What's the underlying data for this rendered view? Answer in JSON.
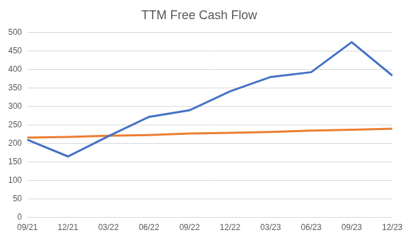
{
  "chart_data": {
    "type": "line",
    "title": "TTM Free Cash Flow",
    "categories": [
      "09/21",
      "12/21",
      "03/22",
      "06/22",
      "09/22",
      "12/22",
      "03/23",
      "06/23",
      "09/23",
      "12/23"
    ],
    "series": [
      {
        "color": "#4472c4",
        "values": [
          210,
          165,
          220,
          272,
          290,
          341,
          380,
          393,
          474,
          384
        ]
      },
      {
        "color": "#ed7d31",
        "values": [
          216,
          218,
          221,
          223,
          227,
          229,
          231,
          235,
          237,
          240
        ]
      }
    ],
    "ylim": [
      0,
      500
    ],
    "yticks": [
      0,
      50,
      100,
      150,
      200,
      250,
      300,
      350,
      400,
      450,
      500
    ],
    "grid": true
  }
}
